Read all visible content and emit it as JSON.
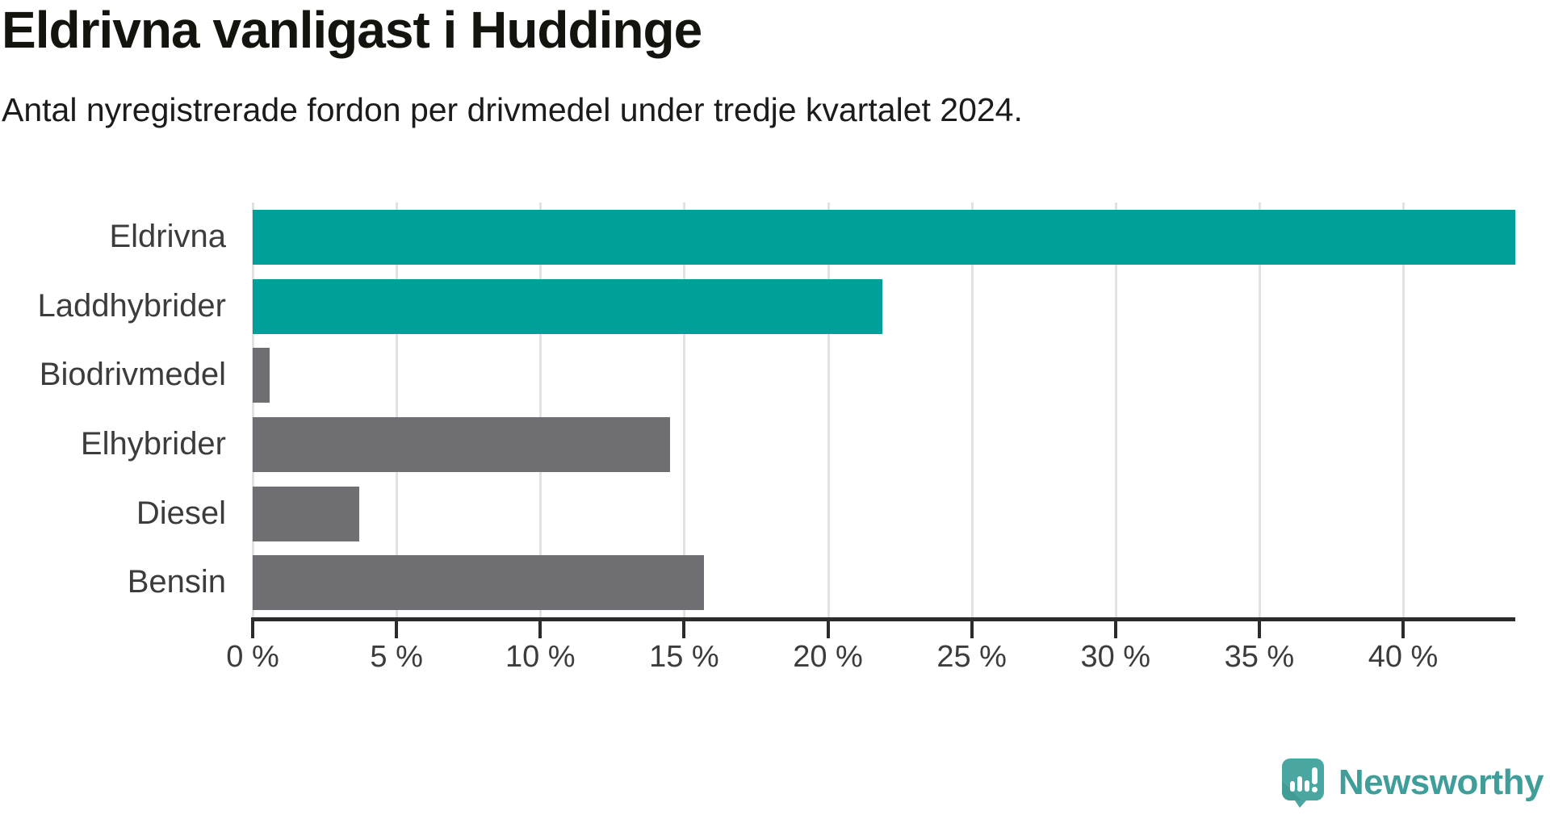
{
  "title": "Eldrivna vanligast i Huddinge",
  "subtitle": "Antal nyregistrerade fordon per drivmedel under tredje kvartalet 2024.",
  "colors": {
    "accent_teal": "#00a09a",
    "bar_gray": "#6e6e73",
    "axis": "#2b2b2b",
    "gridline": "#e2e2e2",
    "label_text": "#3c3c3c",
    "logo_teal": "#49a6a1",
    "logo_text_teal": "#3f9e99"
  },
  "chart_data": {
    "type": "bar",
    "orientation": "horizontal",
    "title": "Eldrivna vanligast i Huddinge",
    "subtitle": "Antal nyregistrerade fordon per drivmedel under tredje kvartalet 2024.",
    "categories": [
      "Eldrivna",
      "Laddhybrider",
      "Biodrivmedel",
      "Elhybrider",
      "Diesel",
      "Bensin"
    ],
    "values": [
      43.9,
      21.9,
      0.6,
      14.5,
      3.7,
      15.7
    ],
    "unit": "%",
    "bar_colors": [
      "#00a09a",
      "#00a09a",
      "#6e6e73",
      "#6e6e73",
      "#6e6e73",
      "#6e6e73"
    ],
    "xlim": [
      0,
      43.9
    ],
    "xticks": [
      0,
      5,
      10,
      15,
      20,
      25,
      30,
      35,
      40
    ],
    "xtick_labels": [
      "0 %",
      "5 %",
      "10 %",
      "15 %",
      "20 %",
      "25 %",
      "30 %",
      "35 %",
      "40 %"
    ],
    "grid": true,
    "legend": "none"
  },
  "footer": {
    "brand": "Newsworthy"
  }
}
